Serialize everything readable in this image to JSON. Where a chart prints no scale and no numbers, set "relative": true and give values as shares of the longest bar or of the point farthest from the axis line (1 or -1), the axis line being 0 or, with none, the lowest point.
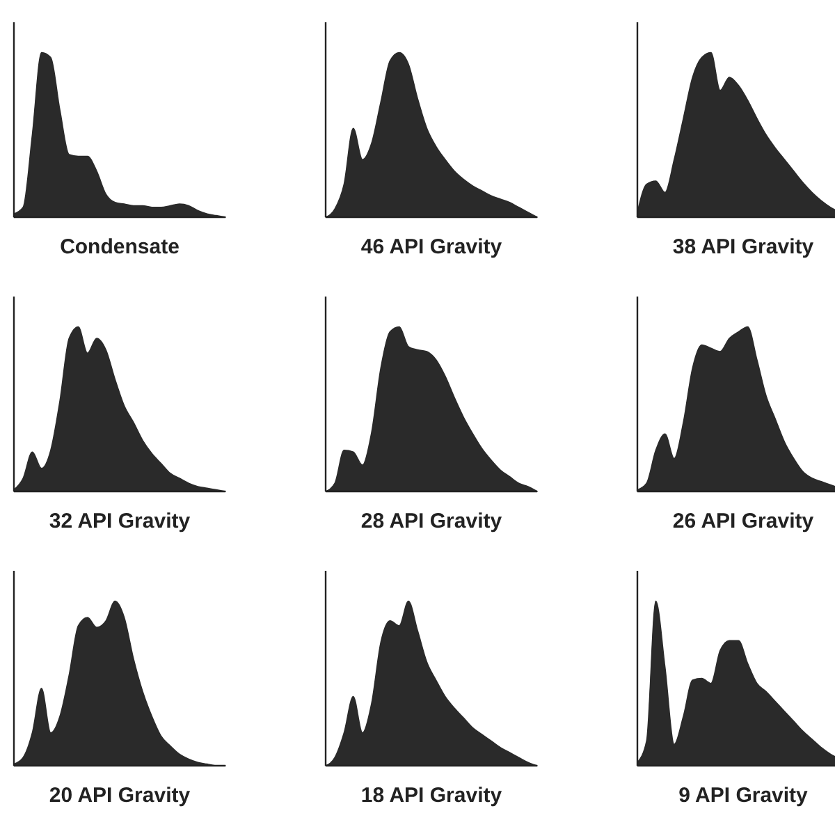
{
  "chart_data": [
    {
      "type": "area",
      "title": "Condensate",
      "relative": true,
      "color": "#2a2a2a",
      "categories": [
        null,
        null,
        null,
        null,
        null,
        null,
        null,
        null,
        null,
        null,
        null,
        null,
        null,
        null,
        null,
        null,
        null,
        null,
        null,
        null,
        null,
        null,
        null,
        null
      ],
      "values": [
        0.02,
        0.06,
        0.5,
        1.0,
        0.97,
        0.65,
        0.38,
        0.37,
        0.37,
        0.28,
        0.14,
        0.09,
        0.08,
        0.07,
        0.07,
        0.06,
        0.06,
        0.07,
        0.08,
        0.07,
        0.04,
        0.02,
        0.01,
        0
      ]
    },
    {
      "type": "area",
      "title": "46 API Gravity",
      "relative": true,
      "color": "#2a2a2a",
      "categories": [
        null,
        null,
        null,
        null,
        null,
        null,
        null,
        null,
        null,
        null,
        null,
        null,
        null,
        null,
        null,
        null,
        null,
        null,
        null,
        null,
        null,
        null,
        null,
        null
      ],
      "values": [
        0,
        0.05,
        0.2,
        0.54,
        0.35,
        0.45,
        0.7,
        0.95,
        1.0,
        0.93,
        0.72,
        0.54,
        0.43,
        0.35,
        0.28,
        0.23,
        0.19,
        0.16,
        0.13,
        0.11,
        0.09,
        0.06,
        0.03,
        0
      ]
    },
    {
      "type": "area",
      "title": "38 API Gravity",
      "relative": true,
      "color": "#2a2a2a",
      "categories": [
        null,
        null,
        null,
        null,
        null,
        null,
        null,
        null,
        null,
        null,
        null,
        null,
        null,
        null,
        null,
        null,
        null,
        null,
        null,
        null,
        null,
        null,
        null,
        null
      ],
      "values": [
        0.03,
        0.2,
        0.22,
        0.15,
        0.35,
        0.6,
        0.85,
        0.97,
        1.0,
        0.77,
        0.85,
        0.8,
        0.71,
        0.6,
        0.5,
        0.42,
        0.35,
        0.28,
        0.21,
        0.15,
        0.1,
        0.06,
        0.03,
        0
      ]
    },
    {
      "type": "area",
      "title": "32 API Gravity",
      "relative": true,
      "color": "#2a2a2a",
      "categories": [
        null,
        null,
        null,
        null,
        null,
        null,
        null,
        null,
        null,
        null,
        null,
        null,
        null,
        null,
        null,
        null,
        null,
        null,
        null,
        null,
        null,
        null,
        null,
        null
      ],
      "values": [
        0.01,
        0.08,
        0.24,
        0.14,
        0.25,
        0.55,
        0.93,
        1.0,
        0.84,
        0.93,
        0.86,
        0.68,
        0.52,
        0.42,
        0.31,
        0.23,
        0.17,
        0.11,
        0.08,
        0.05,
        0.03,
        0.02,
        0.01,
        0
      ]
    },
    {
      "type": "area",
      "title": "28 API Gravity",
      "relative": true,
      "color": "#2a2a2a",
      "categories": [
        null,
        null,
        null,
        null,
        null,
        null,
        null,
        null,
        null,
        null,
        null,
        null,
        null,
        null,
        null,
        null,
        null,
        null,
        null,
        null,
        null,
        null,
        null,
        null
      ],
      "values": [
        0,
        0.05,
        0.25,
        0.24,
        0.16,
        0.36,
        0.75,
        0.97,
        1.0,
        0.88,
        0.86,
        0.85,
        0.8,
        0.7,
        0.57,
        0.45,
        0.35,
        0.26,
        0.19,
        0.13,
        0.09,
        0.05,
        0.03,
        0
      ]
    },
    {
      "type": "area",
      "title": "26 API Gravity",
      "relative": true,
      "color": "#2a2a2a",
      "categories": [
        null,
        null,
        null,
        null,
        null,
        null,
        null,
        null,
        null,
        null,
        null,
        null,
        null,
        null,
        null,
        null,
        null,
        null,
        null,
        null,
        null,
        null,
        null,
        null
      ],
      "values": [
        0.01,
        0.05,
        0.25,
        0.35,
        0.2,
        0.42,
        0.75,
        0.89,
        0.87,
        0.85,
        0.93,
        0.97,
        1.0,
        0.8,
        0.58,
        0.44,
        0.3,
        0.2,
        0.12,
        0.08,
        0.06,
        0.04,
        0.02,
        0
      ]
    },
    {
      "type": "area",
      "title": "20 API Gravity",
      "relative": true,
      "color": "#2a2a2a",
      "categories": [
        null,
        null,
        null,
        null,
        null,
        null,
        null,
        null,
        null,
        null,
        null,
        null,
        null,
        null,
        null,
        null,
        null,
        null,
        null,
        null,
        null,
        null,
        null,
        null
      ],
      "values": [
        0.01,
        0.05,
        0.2,
        0.47,
        0.2,
        0.3,
        0.55,
        0.85,
        0.9,
        0.84,
        0.88,
        1.0,
        0.9,
        0.65,
        0.45,
        0.3,
        0.18,
        0.12,
        0.07,
        0.04,
        0.02,
        0.01,
        0,
        0
      ]
    },
    {
      "type": "area",
      "title": "18 API Gravity",
      "relative": true,
      "color": "#2a2a2a",
      "categories": [
        null,
        null,
        null,
        null,
        null,
        null,
        null,
        null,
        null,
        null,
        null,
        null,
        null,
        null,
        null,
        null,
        null,
        null,
        null,
        null,
        null,
        null,
        null,
        null
      ],
      "values": [
        0,
        0.05,
        0.2,
        0.42,
        0.2,
        0.38,
        0.75,
        0.88,
        0.85,
        1.0,
        0.82,
        0.63,
        0.52,
        0.42,
        0.35,
        0.29,
        0.23,
        0.19,
        0.15,
        0.11,
        0.08,
        0.05,
        0.02,
        0
      ]
    },
    {
      "type": "area",
      "title": "9 API Gravity",
      "relative": true,
      "color": "#2a2a2a",
      "categories": [
        null,
        null,
        null,
        null,
        null,
        null,
        null,
        null,
        null,
        null,
        null,
        null,
        null,
        null,
        null,
        null,
        null,
        null,
        null,
        null,
        null,
        null,
        null,
        null
      ],
      "values": [
        0.02,
        0.15,
        1.0,
        0.6,
        0.13,
        0.3,
        0.52,
        0.53,
        0.5,
        0.7,
        0.76,
        0.76,
        0.62,
        0.5,
        0.45,
        0.39,
        0.33,
        0.27,
        0.21,
        0.16,
        0.11,
        0.07,
        0.04,
        0
      ]
    }
  ]
}
